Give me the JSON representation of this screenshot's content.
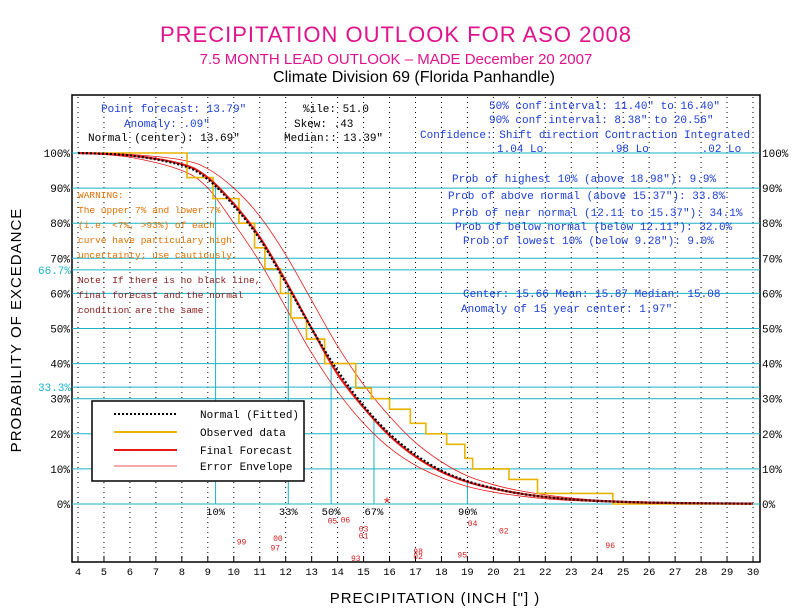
{
  "header": {
    "title": "PRECIPITATION OUTLOOK FOR ASO 2008",
    "subtitle": "7.5 MONTH LEAD OUTLOOK  – MADE December 20 2007",
    "division": "Climate Division 69 (Florida Panhandle)"
  },
  "stats_left": {
    "point_forecast": "Point forecast: 13.79\"",
    "anomaly": "Anomaly: .09\"",
    "normal": "Normal (center): 13.69\"",
    "ile": "%ile:  51.0",
    "skew": "Skew:   .43",
    "median": "Median:: 13.39\""
  },
  "stats_right": {
    "ci50": "50% conf interval: 11.40\" to 16.40\"",
    "ci90": "90% conf interval: 8.38\" to 20.56\"",
    "confidence_row": "Confidence: Shift direction   Contraction   Integrated",
    "confidence_vals": "1.04 Lo          .98 Lo        .02 Lo"
  },
  "probabilities": {
    "highest10": "Prob of highest 10% (above 18.98\"): 9.9%",
    "above_normal": "Prob of above normal (above 15.37\"): 33.8%",
    "near_normal": "Prob of near normal (12.11 to 15.37\"): 34.1%",
    "below_normal": "Prob of below normal (below 12.11\"): 32.0%",
    "lowest10": "Prob of lowest 10% (below 9.28\"): 9.0%"
  },
  "center_line": "Center: 15.66 Mean: 15.87 Median: 15.08",
  "anomaly_line": "Anomaly of 15 year center: 1.97\"",
  "warning": {
    "line1": "WARNING:",
    "line2": "The upper 7% and lower 7%",
    "line3": "(i.e. <7%, >93%) of each",
    "line4": "curve have particulary high",
    "line5": "uncertainty; use cautiously."
  },
  "note": {
    "line1": "Note: If there is no black line,",
    "line2": "final forecast and the normal",
    "line3": "condition are the same"
  },
  "legend": {
    "normal": "Normal (Fitted)",
    "observed": "Observed data",
    "final": "Final Forecast",
    "envelope": "Error Envelope"
  },
  "colors": {
    "title": "#e0138c",
    "info": "#1d3fd6",
    "warning": "#e07000",
    "cyan": "#1ab2c4",
    "forecast": "#e81a1a",
    "observed": "#e8b400",
    "normal": "#000000"
  },
  "chart_data": {
    "type": "line",
    "title": "PRECIPITATION OUTLOOK FOR ASO 2008",
    "xlabel": "PRECIPITATION (INCH [\"] )",
    "ylabel": "PROBABILITY OF EXCEDANCE",
    "xlim": [
      4,
      30
    ],
    "ylim": [
      0,
      100
    ],
    "x_ticks": [
      "4",
      "5",
      "6",
      "7",
      "8",
      "9",
      "10",
      "11",
      "12",
      "13",
      "14",
      "15",
      "16",
      "17",
      "18",
      "19",
      "20",
      "21",
      "22",
      "23",
      "24",
      "25",
      "26",
      "27",
      "28",
      "29",
      "30"
    ],
    "y_ticks": [
      "0%",
      "10%",
      "20%",
      "30%",
      "40%",
      "50%",
      "60%",
      "70%",
      "80%",
      "90%",
      "100%"
    ],
    "y_ticks_right": [
      "0%",
      "10%",
      "20%",
      "30%",
      "40%",
      "50%",
      "60%",
      "70%",
      "80%",
      "90%",
      "100%"
    ],
    "hlines": [
      66.7,
      33.3
    ],
    "hline_labels": [
      "66.7%",
      "33.3%"
    ],
    "quantile_markers": [
      {
        "label": "10%",
        "x": 9.3
      },
      {
        "label": "33%",
        "x": 12.1
      },
      {
        "label": "50%",
        "x": 13.75
      },
      {
        "label": "67%",
        "x": 15.4
      },
      {
        "label": "90%",
        "x": 19.0
      }
    ],
    "series": [
      {
        "name": "Normal (Fitted)",
        "style": "dotted",
        "x": [
          4,
          6,
          8,
          9,
          10,
          11,
          12,
          13,
          14,
          15,
          16,
          17,
          18,
          19,
          20,
          21,
          22,
          23,
          24,
          25,
          26,
          28,
          30
        ],
        "y": [
          100,
          99.3,
          96.5,
          92.5,
          85,
          75.5,
          63,
          50,
          38,
          28,
          20,
          14,
          9.5,
          6.5,
          4.5,
          3,
          2,
          1.3,
          0.9,
          0.6,
          0.4,
          0.2,
          0.1
        ]
      },
      {
        "name": "Observed data",
        "style": "step",
        "x": [
          4,
          8,
          8.2,
          9.2,
          10.2,
          10.8,
          11.2,
          11.8,
          12.2,
          12.8,
          13.5,
          14.7,
          15.3,
          16,
          16.8,
          17.4,
          18.2,
          18.9,
          19.2,
          20.6,
          21.7,
          24.6,
          30
        ],
        "y": [
          100,
          100,
          93,
          87,
          80,
          73,
          67,
          60,
          53,
          47,
          40,
          33,
          30,
          27,
          23,
          20,
          17,
          13,
          10,
          7,
          3,
          0,
          0
        ]
      },
      {
        "name": "Final Forecast",
        "style": "solid",
        "x": [
          4,
          6,
          8,
          9,
          10,
          11,
          12,
          13,
          14,
          15,
          16,
          17,
          18,
          19,
          20,
          21,
          22,
          23,
          24,
          25,
          26,
          28,
          30
        ],
        "y": [
          100,
          99.3,
          96.8,
          93,
          85.5,
          76,
          63.5,
          50,
          37,
          27.5,
          19.5,
          13.5,
          9.2,
          6.3,
          4.4,
          3,
          2,
          1.3,
          0.9,
          0.6,
          0.4,
          0.2,
          0.1
        ]
      },
      {
        "name": "Error Envelope Upper",
        "style": "thin",
        "x": [
          4,
          6,
          8,
          9,
          10,
          11,
          12,
          13,
          14,
          15,
          16,
          17,
          18,
          19,
          20,
          21,
          22,
          23,
          24,
          25,
          26,
          28,
          30
        ],
        "y": [
          100,
          99.6,
          98,
          95.5,
          90,
          82,
          71,
          58,
          45,
          34,
          25,
          17.5,
          12,
          8,
          5.5,
          3.8,
          2.6,
          1.7,
          1.1,
          0.7,
          0.5,
          0.2,
          0.1
        ]
      },
      {
        "name": "Error Envelope Lower",
        "style": "thin",
        "x": [
          4,
          6,
          8,
          9,
          10,
          11,
          12,
          13,
          14,
          15,
          16,
          17,
          18,
          19,
          20,
          21,
          22,
          23,
          24,
          25,
          26,
          28,
          30
        ],
        "y": [
          100,
          98.8,
          95,
          90,
          80,
          69,
          56,
          43,
          32,
          23,
          16,
          11,
          7.5,
          5,
          3.4,
          2.3,
          1.5,
          1,
          0.7,
          0.5,
          0.3,
          0.1,
          0.05
        ]
      }
    ],
    "year_labels": [
      {
        "label": "99",
        "x": 10.3,
        "y": -11.5
      },
      {
        "label": "00",
        "x": 11.7,
        "y": -10.5
      },
      {
        "label": "97",
        "x": 11.6,
        "y": -13.3
      },
      {
        "label": "05",
        "x": 13.8,
        "y": -5.5
      },
      {
        "label": "06",
        "x": 14.3,
        "y": -5.2
      },
      {
        "label": "03",
        "x": 15.0,
        "y": -7.8
      },
      {
        "label": "01",
        "x": 15.0,
        "y": -9.8
      },
      {
        "label": "93",
        "x": 14.7,
        "y": -16.3
      },
      {
        "label": "98",
        "x": 17.1,
        "y": -14.3
      },
      {
        "label": "02",
        "x": 17.1,
        "y": -15.7
      },
      {
        "label": "95",
        "x": 18.8,
        "y": -15.2
      },
      {
        "label": "04",
        "x": 19.2,
        "y": -6.3
      },
      {
        "label": "02",
        "x": 20.4,
        "y": -8.4
      },
      {
        "label": "96",
        "x": 24.5,
        "y": -12.5
      }
    ],
    "forecast_marker": {
      "label": "*",
      "x": 15.9,
      "y": 0.2
    }
  }
}
